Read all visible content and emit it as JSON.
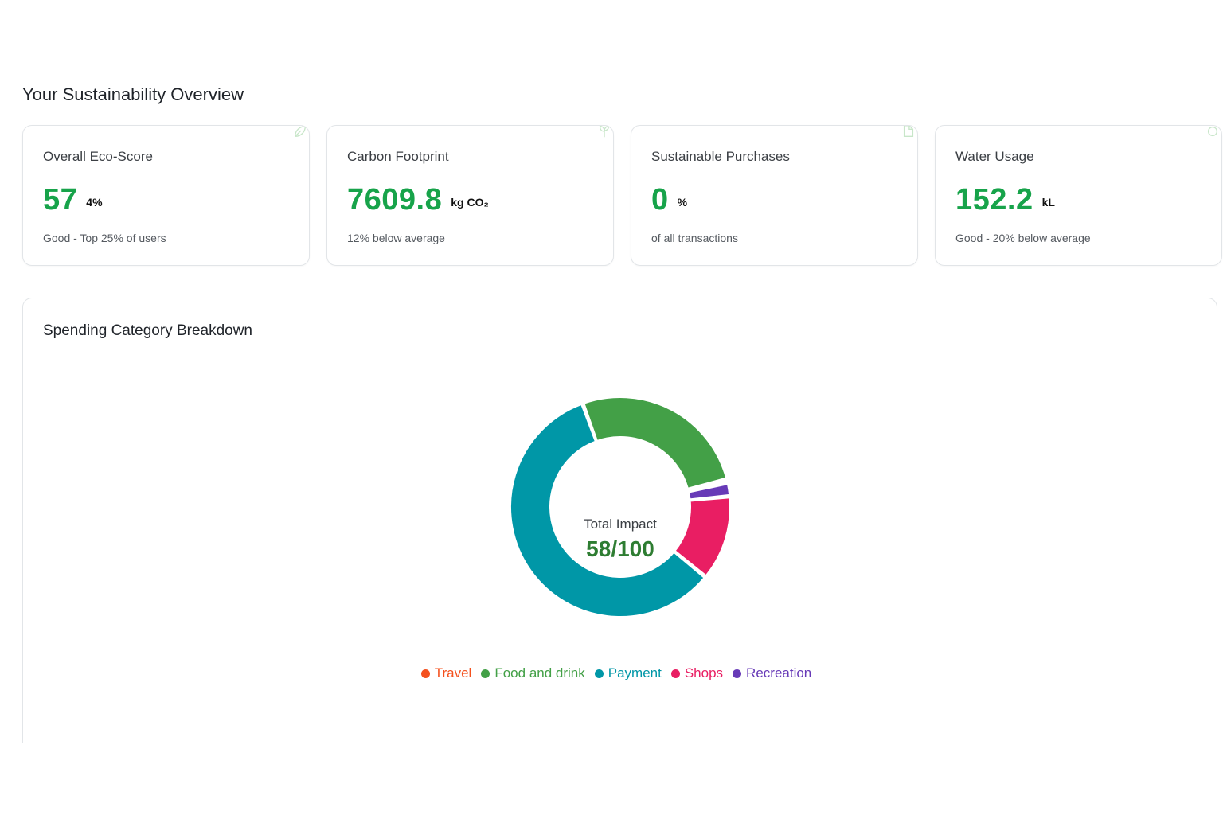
{
  "page": {
    "title": "Your Sustainability Overview"
  },
  "cards": [
    {
      "title": "Overall Eco-Score",
      "value": "57",
      "unit": "4%",
      "subtitle": "Good - Top 25% of users",
      "icon": "leaf-icon"
    },
    {
      "title": "Carbon Footprint",
      "value": "7609.8",
      "unit": "kg CO₂",
      "subtitle": "12% below average",
      "icon": "sprout-icon"
    },
    {
      "title": "Sustainable Purchases",
      "value": "0",
      "unit": "%",
      "subtitle": "of all transactions",
      "icon": "receipt-icon"
    },
    {
      "title": "Water Usage",
      "value": "152.2",
      "unit": "kL",
      "subtitle": "Good - 20% below average",
      "icon": "droplet-icon"
    }
  ],
  "colors": {
    "accent_green": "#17a34a",
    "travel": "#f4511e",
    "food": "#43a047",
    "payment": "#0097a7",
    "shops": "#e91e63",
    "recreation": "#673ab7"
  },
  "chart_panel": {
    "title": "Spending Category Breakdown",
    "center_label": "Total Impact",
    "center_value": "58/100"
  },
  "chart_data": {
    "type": "pie",
    "title": "Spending Category Breakdown",
    "donut": true,
    "center_text": [
      "Total Impact",
      "58/100"
    ],
    "legend_position": "bottom",
    "categories": [
      "Travel",
      "Food and drink",
      "Payment",
      "Shops",
      "Recreation"
    ],
    "values": [
      0.5,
      26.5,
      58.5,
      12.5,
      2.0
    ],
    "unit": "percent of total (approx.)",
    "colors": [
      "#f4511e",
      "#43a047",
      "#0097a7",
      "#e91e63",
      "#673ab7"
    ]
  }
}
